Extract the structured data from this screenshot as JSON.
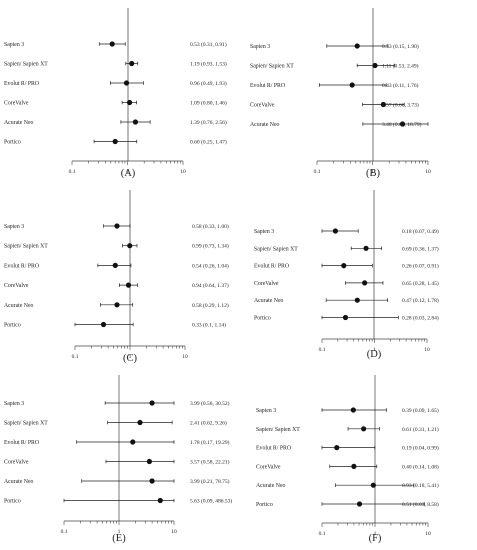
{
  "chart_data": [
    {
      "type": "forest",
      "panel_label": "(A)",
      "x_scale": "log",
      "xlim": [
        0.1,
        10
      ],
      "ticks": [
        "0.1",
        "1",
        "10"
      ],
      "reference_line": 1,
      "rows": [
        {
          "label": "Sapien 3",
          "estimate": 0.53,
          "lower": 0.31,
          "upper": 0.91,
          "text": "0.53 (0.31, 0.91)"
        },
        {
          "label": "Sapien/ Sapien XT",
          "estimate": 1.19,
          "lower": 0.93,
          "upper": 1.53,
          "text": "1.19 (0.93, 1.53)"
        },
        {
          "label": "Evolut R/ PRO",
          "estimate": 0.96,
          "lower": 0.49,
          "upper": 1.93,
          "text": "0.96 (0.49, 1.93)"
        },
        {
          "label": "CoreValve",
          "estimate": 1.09,
          "lower": 0.8,
          "upper": 1.46,
          "text": "1.09 (0.80, 1.46)"
        },
        {
          "label": "Acurate Neo",
          "estimate": 1.39,
          "lower": 0.76,
          "upper": 2.56,
          "text": "1.39 (0.76, 2.56)"
        },
        {
          "label": "Portico",
          "estimate": 0.6,
          "lower": 0.25,
          "upper": 1.47,
          "text": "0.60 (0.25, 1.47)"
        }
      ]
    },
    {
      "type": "forest",
      "panel_label": "(B)",
      "x_scale": "log",
      "xlim": [
        0.1,
        10
      ],
      "ticks": [
        "0.1",
        "1",
        "10"
      ],
      "reference_line": 1,
      "rows": [
        {
          "label": "Sapien 3",
          "estimate": 0.53,
          "lower": 0.15,
          "upper": 1.9,
          "text": "0.53 (0.15, 1.90)"
        },
        {
          "label": "Sapien/ Sapien XT",
          "estimate": 1.11,
          "lower": 0.53,
          "upper": 2.49,
          "text": "1.11 (0.53, 2.49)"
        },
        {
          "label": "Evolut R/ PRO",
          "estimate": 0.43,
          "lower": 0.11,
          "upper": 1.76,
          "text": "0.43 (0.11, 1.76)"
        },
        {
          "label": "CoreValve",
          "estimate": 1.57,
          "lower": 0.66,
          "upper": 3.73,
          "text": "1.57 (0.66, 3.73)"
        },
        {
          "label": "Acurate Neo",
          "estimate": 3.48,
          "lower": 0.67,
          "upper": 18.79,
          "text": "3.48 (0.67, 18.79)"
        }
      ]
    },
    {
      "type": "forest",
      "panel_label": "(C)",
      "x_scale": "log",
      "xlim": [
        0.1,
        10
      ],
      "ticks": [
        "0.1",
        "1",
        "10"
      ],
      "reference_line": 1,
      "rows": [
        {
          "label": "Sapien 3",
          "estimate": 0.58,
          "lower": 0.33,
          "upper": 1.0,
          "text": "0.58 (0.33, 1.00)"
        },
        {
          "label": "Sapien/ Sapien XT",
          "estimate": 0.99,
          "lower": 0.73,
          "upper": 1.34,
          "text": "0.99 (0.73, 1.34)"
        },
        {
          "label": "Evolut R/ PRO",
          "estimate": 0.54,
          "lower": 0.26,
          "upper": 1.04,
          "text": "0.54 (0.26, 1.04)"
        },
        {
          "label": "CoreValve",
          "estimate": 0.94,
          "lower": 0.64,
          "upper": 1.37,
          "text": "0.94 (0.64, 1.37)"
        },
        {
          "label": "Acurate Neo",
          "estimate": 0.58,
          "lower": 0.29,
          "upper": 1.12,
          "text": "0.58 (0.29, 1.12)"
        },
        {
          "label": "Portico",
          "estimate": 0.33,
          "lower": 0.1,
          "upper": 1.14,
          "text": "0.33 (0.1, 1.14)"
        }
      ]
    },
    {
      "type": "forest",
      "panel_label": "(D)",
      "x_scale": "log",
      "xlim": [
        0.1,
        10
      ],
      "ticks": [
        "0.1",
        "1",
        "10"
      ],
      "reference_line": 1,
      "rows": [
        {
          "label": "Sapien 3",
          "estimate": 0.18,
          "lower": 0.07,
          "upper": 0.49,
          "text": "0.18 (0.07, 0.49)"
        },
        {
          "label": "Sapien/ Sapien XT",
          "estimate": 0.69,
          "lower": 0.36,
          "upper": 1.37,
          "text": "0.69 (0.36, 1.37)"
        },
        {
          "label": "Evolut R/ PRO",
          "estimate": 0.26,
          "lower": 0.07,
          "upper": 0.91,
          "text": "0.26 (0.07, 0.91)"
        },
        {
          "label": "CoreValve",
          "estimate": 0.65,
          "lower": 0.28,
          "upper": 1.45,
          "text": "0.65 (0.28, 1.45)"
        },
        {
          "label": "Acurate Neo",
          "estimate": 0.47,
          "lower": 0.12,
          "upper": 1.78,
          "text": "0.47 (0.12, 1.78)"
        },
        {
          "label": "Portico",
          "estimate": 0.28,
          "lower": 0.03,
          "upper": 2.84,
          "text": "0.28 (0.03, 2.84)"
        }
      ]
    },
    {
      "type": "forest",
      "panel_label": "(E)",
      "x_scale": "log",
      "xlim": [
        0.1,
        10
      ],
      "ticks": [
        "0.1",
        "1",
        "10"
      ],
      "reference_line": 1,
      "rows": [
        {
          "label": "Sapien 3",
          "estimate": 3.99,
          "lower": 0.56,
          "upper": 30.52,
          "text": "3.99 (0.56, 30.52)"
        },
        {
          "label": "Sapien/ Sapien XT",
          "estimate": 2.41,
          "lower": 0.62,
          "upper": 9.26,
          "text": "2.41 (0.62, 9.26)"
        },
        {
          "label": "Evolut R/ PRO",
          "estimate": 1.78,
          "lower": 0.17,
          "upper": 19.29,
          "text": "1.78 (0.17, 19.29)"
        },
        {
          "label": "CoreValve",
          "estimate": 3.57,
          "lower": 0.58,
          "upper": 22.21,
          "text": "3.57 (0.58, 22.21)"
        },
        {
          "label": "Acurate Neo",
          "estimate": 3.99,
          "lower": 0.21,
          "upper": 78.75,
          "text": "3.99 (0.21, 78.75)"
        },
        {
          "label": "Portico",
          "estimate": 5.63,
          "lower": 0.09,
          "upper": 486.53,
          "text": "5.63 (0.09, 486.53)"
        }
      ]
    },
    {
      "type": "forest",
      "panel_label": "(F)",
      "x_scale": "log",
      "xlim": [
        0.1,
        10
      ],
      "ticks": [
        "0.1",
        "1",
        "10"
      ],
      "reference_line": 1,
      "rows": [
        {
          "label": "Sapien 3",
          "estimate": 0.39,
          "lower": 0.09,
          "upper": 1.65,
          "text": "0.39 (0.09, 1.65)"
        },
        {
          "label": "Sapien/ Sapien XT",
          "estimate": 0.61,
          "lower": 0.31,
          "upper": 1.21,
          "text": "0.61 (0.31, 1.21)"
        },
        {
          "label": "Evolut R/ PRO",
          "estimate": 0.19,
          "lower": 0.04,
          "upper": 0.99,
          "text": "0.19 (0.04, 0.99)"
        },
        {
          "label": "CoreValve",
          "estimate": 0.4,
          "lower": 0.14,
          "upper": 1.08,
          "text": "0.40 (0.14, 1.08)"
        },
        {
          "label": "Acurate Neo",
          "estimate": 0.93,
          "lower": 0.18,
          "upper": 5.41,
          "text": "0.93 (0.18, 5.41)"
        },
        {
          "label": "Portico",
          "estimate": 0.51,
          "lower": 0.03,
          "upper": 8.58,
          "text": "0.51 (0.03, 8.58)"
        }
      ]
    }
  ]
}
